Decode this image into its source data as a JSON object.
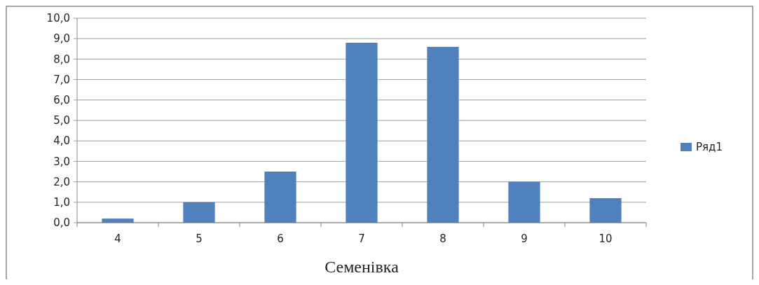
{
  "chart_data": {
    "type": "bar",
    "xlabel": "Семенівка",
    "categories": [
      "4",
      "5",
      "6",
      "7",
      "8",
      "9",
      "10"
    ],
    "series": [
      {
        "name": "Ряд1",
        "color": "#4f81bd",
        "values": [
          0.2,
          1.0,
          2.5,
          8.8,
          8.6,
          2.0,
          1.2
        ]
      }
    ],
    "ylim": [
      0,
      10
    ],
    "yticks": [
      {
        "value": 0,
        "label": "0,0"
      },
      {
        "value": 1,
        "label": "1,0"
      },
      {
        "value": 2,
        "label": "2,0"
      },
      {
        "value": 3,
        "label": "3,0"
      },
      {
        "value": 4,
        "label": "4,0"
      },
      {
        "value": 5,
        "label": "5,0"
      },
      {
        "value": 6,
        "label": "6,0"
      },
      {
        "value": 7,
        "label": "7,0"
      },
      {
        "value": 8,
        "label": "8,0"
      },
      {
        "value": 9,
        "label": "9,0"
      },
      {
        "value": 10,
        "label": "10,0"
      }
    ],
    "grid": "y",
    "legend": "right"
  }
}
